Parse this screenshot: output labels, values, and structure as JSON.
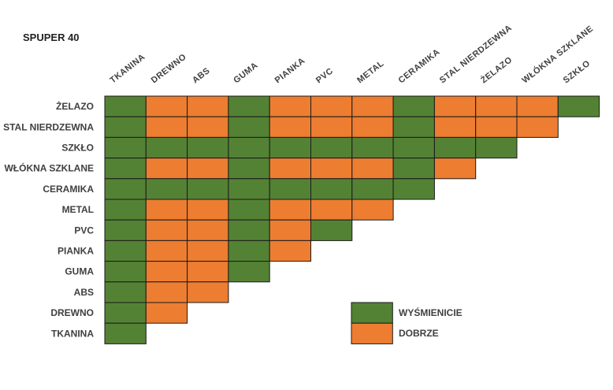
{
  "title": "SPUPER 40",
  "chart_data": {
    "type": "heatmap",
    "title": "SPUPER 40",
    "columns": [
      "TKANINA",
      "DREWNO",
      "ABS",
      "GUMA",
      "PIANKA",
      "PVC",
      "METAL",
      "CERAMIKA",
      "STAL NIERDZEWNA",
      "ŻELAZO",
      "WŁÓKNA SZKLANE",
      "SZKŁO"
    ],
    "rows": [
      "ŻELAZO",
      "STAL NIERDZEWNA",
      "SZKŁO",
      "WŁÓKNA SZKLANE",
      "CERAMIKA",
      "METAL",
      "PVC",
      "PIANKA",
      "GUMA",
      "ABS",
      "DREWNO",
      "TKANINA"
    ],
    "cells": [
      [
        "W",
        "D",
        "D",
        "W",
        "D",
        "D",
        "D",
        "W",
        "D",
        "D",
        "D",
        "W"
      ],
      [
        "W",
        "D",
        "D",
        "W",
        "D",
        "D",
        "D",
        "W",
        "D",
        "D",
        "D"
      ],
      [
        "W",
        "W",
        "W",
        "W",
        "W",
        "W",
        "W",
        "W",
        "W",
        "W"
      ],
      [
        "W",
        "D",
        "D",
        "W",
        "D",
        "D",
        "D",
        "W",
        "D"
      ],
      [
        "W",
        "W",
        "W",
        "W",
        "W",
        "W",
        "W",
        "W"
      ],
      [
        "W",
        "D",
        "D",
        "W",
        "D",
        "D",
        "D"
      ],
      [
        "W",
        "D",
        "D",
        "W",
        "D",
        "W"
      ],
      [
        "W",
        "D",
        "D",
        "W",
        "D"
      ],
      [
        "W",
        "D",
        "D",
        "W"
      ],
      [
        "W",
        "D",
        "D"
      ],
      [
        "W",
        "D"
      ],
      [
        "W"
      ]
    ],
    "legend": [
      {
        "key": "W",
        "label": "WYŚMIENICIE",
        "color": "#548235"
      },
      {
        "key": "D",
        "label": "DOBRZE",
        "color": "#ed7d31"
      }
    ],
    "legend_position": "bottom-right"
  }
}
